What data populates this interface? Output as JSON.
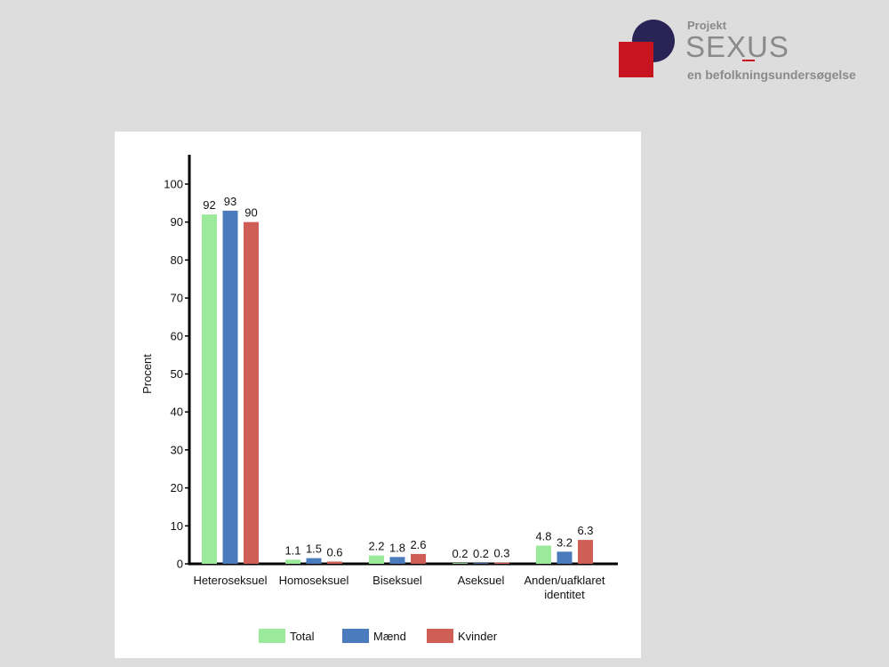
{
  "logo": {
    "small": "Projekt",
    "main": "SEXUS",
    "sub": "en befolkningsundersøgelse"
  },
  "chart_data": {
    "type": "bar",
    "ylabel": "Procent",
    "ylim": [
      0,
      100
    ],
    "yticks": [
      0,
      10,
      20,
      30,
      40,
      50,
      60,
      70,
      80,
      90,
      100
    ],
    "categories": [
      [
        "Heteroseksuel"
      ],
      [
        "Homoseksuel"
      ],
      [
        "Biseksuel"
      ],
      [
        "Aseksuel"
      ],
      [
        "Anden/uafklaret",
        "identitet"
      ]
    ],
    "series": [
      {
        "name": "Total",
        "color": "#9bea9b",
        "values": [
          92,
          1.1,
          2.2,
          0.2,
          4.8
        ]
      },
      {
        "name": "Mænd",
        "color": "#4a7bbd",
        "values": [
          93,
          1.5,
          1.8,
          0.2,
          3.2
        ]
      },
      {
        "name": "Kvinder",
        "color": "#cf5f56",
        "values": [
          90,
          0.6,
          2.6,
          0.3,
          6.3
        ]
      }
    ],
    "legend_position": "bottom",
    "grid": false
  }
}
